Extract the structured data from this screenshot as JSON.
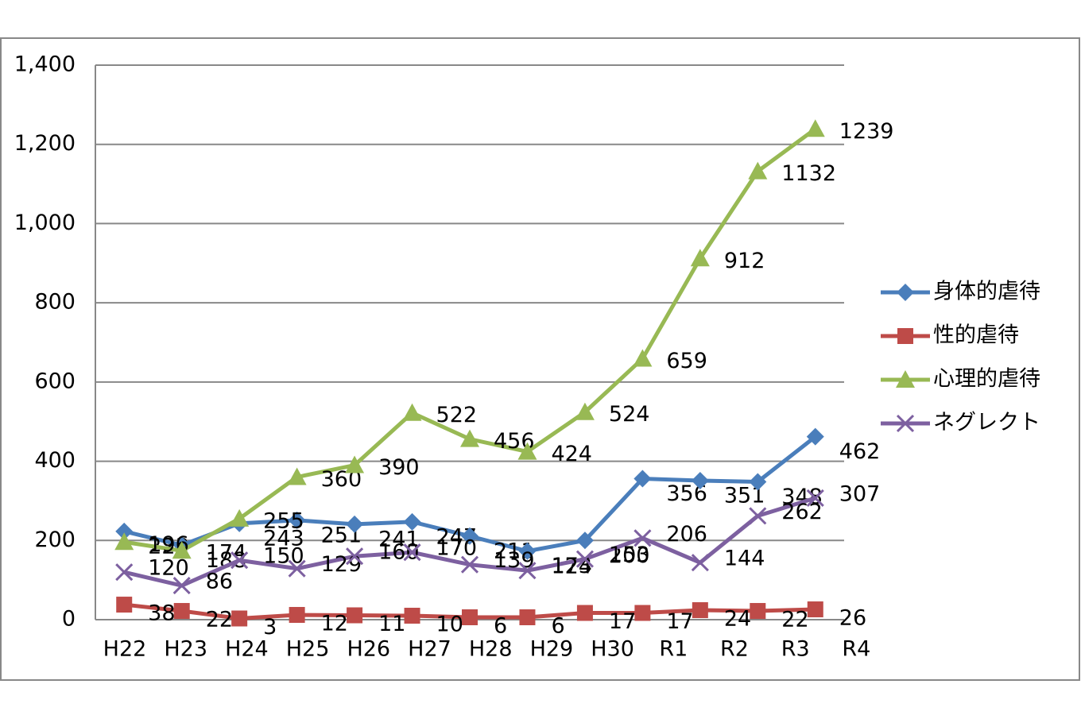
{
  "chart_data": {
    "type": "line",
    "categories": [
      "H22",
      "H23",
      "H24",
      "H25",
      "H26",
      "H27",
      "H28",
      "H29",
      "H30",
      "R1",
      "R2",
      "R3",
      "R4"
    ],
    "series": [
      {
        "name": "身体的虐待",
        "color": "#4a7ebb",
        "marker": "diamond",
        "values": [
          223,
          188,
          243,
          251,
          241,
          247,
          211,
          173,
          200,
          356,
          351,
          348,
          462
        ]
      },
      {
        "name": "性的虐待",
        "color": "#be4b48",
        "marker": "square",
        "values": [
          38,
          22,
          3,
          12,
          11,
          10,
          6,
          6,
          17,
          17,
          24,
          22,
          26
        ]
      },
      {
        "name": "心理的虐待",
        "color": "#98b954",
        "marker": "triangle",
        "values": [
          196,
          174,
          255,
          360,
          390,
          522,
          456,
          424,
          524,
          659,
          912,
          1132,
          1239
        ]
      },
      {
        "name": "ネグレクト",
        "color": "#7d60a0",
        "marker": "x",
        "values": [
          120,
          86,
          150,
          129,
          160,
          170,
          139,
          124,
          153,
          206,
          144,
          262,
          307
        ],
        "value_labels": null
      }
    ],
    "ylim": [
      0,
      1400
    ],
    "yticks": [
      0,
      200,
      400,
      600,
      800,
      {
        "value": 1000,
        "label": "1,000"
      },
      {
        "value": 1200,
        "label": "1,200"
      },
      {
        "value": 1400,
        "label": "1,400"
      }
    ],
    "grid": true,
    "legend": "right"
  }
}
